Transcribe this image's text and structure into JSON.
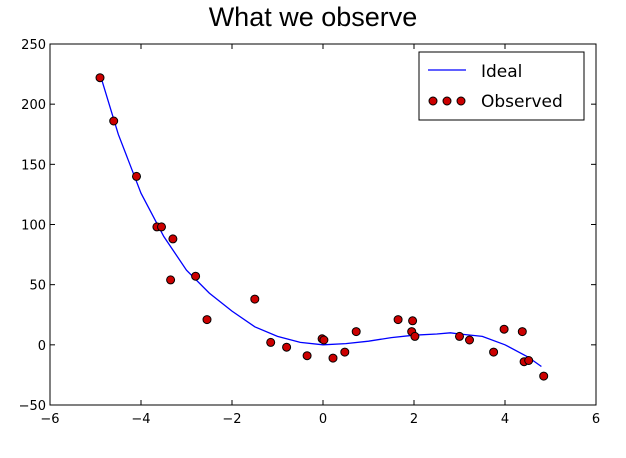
{
  "chart_data": {
    "type": "scatter",
    "title": "What we observe",
    "xlabel": "",
    "ylabel": "",
    "xlim": [
      -6,
      6
    ],
    "ylim": [
      -50,
      250
    ],
    "xticks": [
      -6,
      -4,
      -2,
      0,
      2,
      4,
      6
    ],
    "yticks": [
      -50,
      0,
      50,
      100,
      150,
      200,
      250
    ],
    "grid": false,
    "legend_position": "top-right",
    "series": [
      {
        "name": "Ideal",
        "kind": "line",
        "color": "#0000ff",
        "x": [
          -4.9,
          -4.5,
          -4.0,
          -3.5,
          -3.0,
          -2.5,
          -2.0,
          -1.5,
          -1.0,
          -0.5,
          0.0,
          0.5,
          1.0,
          1.5,
          2.0,
          2.5,
          2.8,
          3.0,
          3.5,
          4.0,
          4.5,
          4.8
        ],
        "y": [
          225,
          175,
          126,
          90,
          62,
          43,
          28,
          15,
          7,
          2,
          0,
          1,
          3,
          6,
          8,
          9,
          10,
          9,
          7,
          0,
          -10,
          -18
        ]
      },
      {
        "name": "Observed",
        "kind": "scatter",
        "color": "#cc0000",
        "x": [
          -4.9,
          -4.6,
          -4.1,
          -3.65,
          -3.55,
          -3.3,
          -3.35,
          -2.8,
          -2.55,
          -1.5,
          -1.15,
          -0.8,
          -0.35,
          -0.02,
          0.02,
          0.22,
          0.48,
          0.73,
          1.65,
          1.95,
          1.97,
          2.02,
          3.0,
          3.22,
          3.75,
          3.98,
          4.38,
          4.42,
          4.52,
          4.85
        ],
        "y": [
          222,
          186,
          140,
          98,
          98,
          88,
          54,
          57,
          21,
          38,
          2,
          -2,
          -9,
          5,
          4,
          -11,
          -6,
          11,
          21,
          11,
          20,
          7,
          7,
          4,
          -6,
          13,
          11,
          -14,
          -13,
          -26
        ]
      }
    ]
  }
}
